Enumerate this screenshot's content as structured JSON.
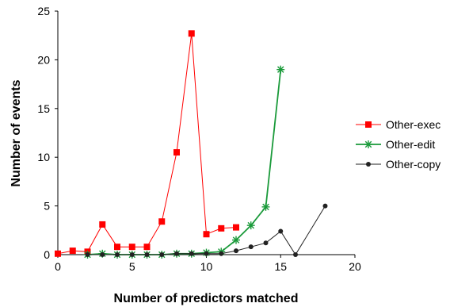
{
  "chart_data": {
    "type": "line",
    "title": "",
    "xlabel": "Number of predictors matched",
    "ylabel": "Number of events",
    "xlim": [
      0,
      20
    ],
    "ylim": [
      0,
      25
    ],
    "xticks": [
      0,
      5,
      10,
      15,
      20
    ],
    "yticks": [
      0,
      5,
      10,
      15,
      20,
      25
    ],
    "grid": false,
    "legend_position": "right",
    "series": [
      {
        "name": "Other-exec",
        "color": "#ff0000",
        "marker": "square",
        "points": [
          [
            0,
            0.1
          ],
          [
            1,
            0.4
          ],
          [
            2,
            0.3
          ],
          [
            3,
            3.1
          ],
          [
            4,
            0.8
          ],
          [
            5,
            0.8
          ],
          [
            6,
            0.8
          ],
          [
            7,
            3.4
          ],
          [
            8,
            10.5
          ],
          [
            9,
            22.7
          ],
          [
            10,
            2.1
          ],
          [
            11,
            2.7
          ],
          [
            12,
            2.8
          ]
        ]
      },
      {
        "name": "Other-edit",
        "color": "#1a9a3a",
        "marker": "star",
        "points": [
          [
            2,
            0.0
          ],
          [
            3,
            0.1
          ],
          [
            4,
            0.0
          ],
          [
            5,
            0.0
          ],
          [
            6,
            0.0
          ],
          [
            7,
            0.0
          ],
          [
            8,
            0.1
          ],
          [
            9,
            0.1
          ],
          [
            10,
            0.2
          ],
          [
            11,
            0.3
          ],
          [
            12,
            1.5
          ],
          [
            13,
            3.0
          ],
          [
            14,
            4.9
          ],
          [
            15,
            19.0
          ]
        ]
      },
      {
        "name": "Other-copy",
        "color": "#222222",
        "marker": "circle",
        "points": [
          [
            2,
            0.0
          ],
          [
            3,
            0.0
          ],
          [
            4,
            0.0
          ],
          [
            5,
            0.0
          ],
          [
            6,
            0.0
          ],
          [
            7,
            0.0
          ],
          [
            8,
            0.1
          ],
          [
            9,
            0.1
          ],
          [
            10,
            0.1
          ],
          [
            11,
            0.1
          ],
          [
            12,
            0.4
          ],
          [
            13,
            0.8
          ],
          [
            14,
            1.2
          ],
          [
            15,
            2.4
          ],
          [
            16,
            0.0
          ],
          [
            18,
            5.0
          ]
        ]
      }
    ]
  }
}
